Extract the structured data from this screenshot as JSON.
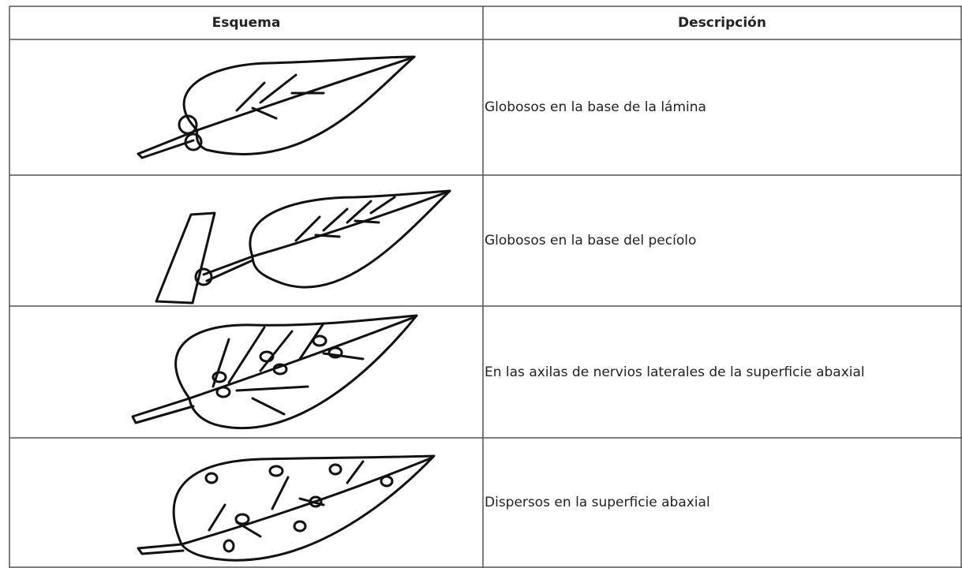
{
  "table": {
    "header": [
      "Esquema",
      "Descripción"
    ],
    "rows": [
      {
        "description": "Globosos en la base de la lámina"
      },
      {
        "description": "Globosos en la base del pecíolo"
      },
      {
        "description": "En las axilas de nervios laterales de la superficie abaxial"
      },
      {
        "description": "Dispersos en la superficie abaxial"
      }
    ]
  }
}
